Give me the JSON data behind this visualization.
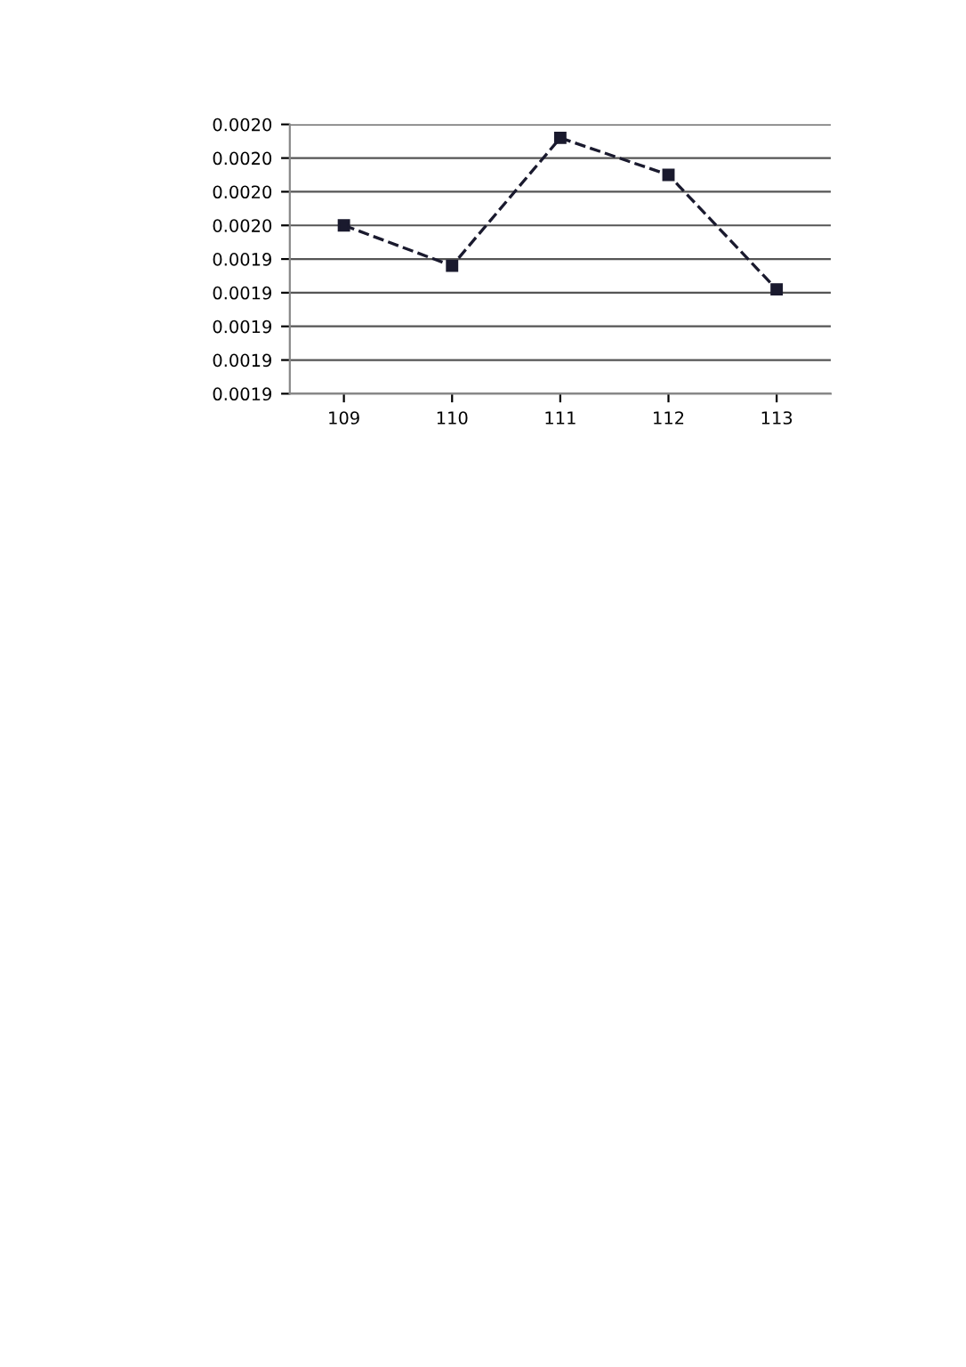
{
  "chart_data": {
    "type": "line",
    "categories": [
      "109",
      "110",
      "111",
      "112",
      "113"
    ],
    "series": [
      {
        "color": "#1a1a2e",
        "values": [
          0.00195,
          0.001938,
          0.001976,
          0.001965,
          0.001931
        ]
      }
    ],
    "ylim": [
      0.0019,
      0.00198
    ],
    "yticks": [
      {
        "value": 0.0019,
        "label": "0.0019"
      },
      {
        "value": 0.00191,
        "label": "0.0019"
      },
      {
        "value": 0.00192,
        "label": "0.0019"
      },
      {
        "value": 0.00193,
        "label": "0.0019"
      },
      {
        "value": 0.00194,
        "label": "0.0019"
      },
      {
        "value": 0.00195,
        "label": "0.0020"
      },
      {
        "value": 0.00196,
        "label": "0.0020"
      },
      {
        "value": 0.00197,
        "label": "0.0020"
      },
      {
        "value": 0.00198,
        "label": "0.0020"
      }
    ],
    "grid": "y",
    "marker": "square",
    "line_style": "dashed"
  }
}
